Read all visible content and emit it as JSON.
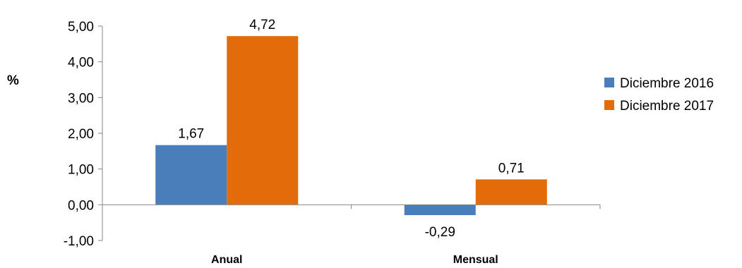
{
  "chart_data": {
    "type": "bar",
    "title": "",
    "xlabel": "",
    "ylabel": "%",
    "categories": [
      "Anual",
      "Mensual"
    ],
    "series": [
      {
        "name": "Diciembre 2016",
        "values": [
          1.67,
          -0.29
        ],
        "labels": [
          "1,67",
          "-0,29"
        ],
        "color": "#4a7ebb"
      },
      {
        "name": "Diciembre 2017",
        "values": [
          4.72,
          0.71
        ],
        "labels": [
          "4,72",
          "0,71"
        ],
        "color": "#e36c0a"
      }
    ],
    "ylim": [
      -1,
      5
    ],
    "yticks": [
      -1,
      0,
      1,
      2,
      3,
      4,
      5
    ],
    "ytick_labels": [
      "-1,00",
      "0,00",
      "1,00",
      "2,00",
      "3,00",
      "4,00",
      "5,00"
    ],
    "grid": false,
    "legend_position": "right"
  }
}
